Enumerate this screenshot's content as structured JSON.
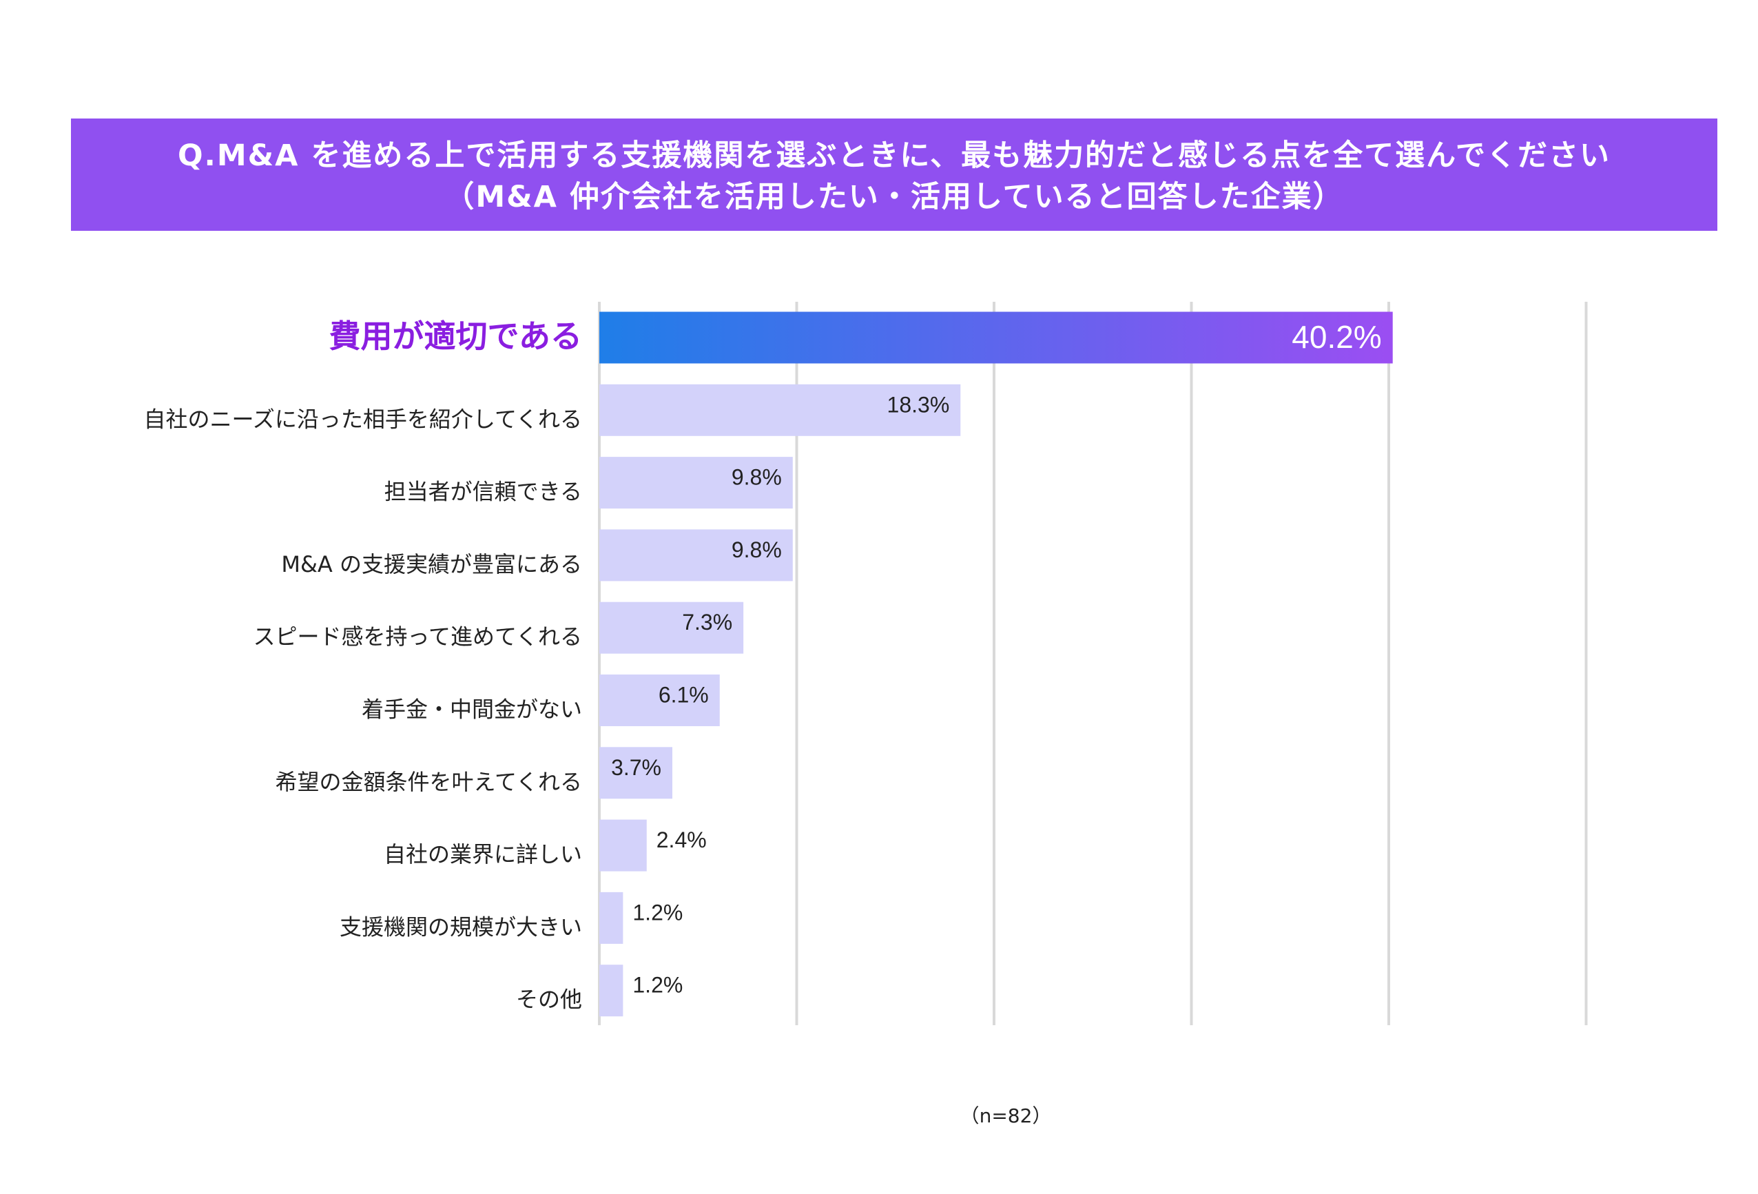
{
  "title": {
    "line1": "Q.M&A を進める上で活用する支援機関を選ぶときに、最も魅力的だと感じる点を全て選んでください",
    "line2": "（M&A 仲介会社を活用したい・活用していると回答した企業）"
  },
  "note": "（n=82）",
  "colors": {
    "title_band": "#9050f0",
    "highlight_label": "#8a1ee0",
    "bar_default": "#d3d2fa",
    "bar_highlight_start": "#1f7ee8",
    "bar_highlight_end": "#9b4ef2",
    "grid": "#d9d9d9"
  },
  "chart_data": {
    "type": "bar",
    "orientation": "horizontal",
    "categories": [
      "費用が適切である",
      "自社のニーズに沿った相手を紹介してくれる",
      "担当者が信頼できる",
      "M&A の支援実績が豊富にある",
      "スピード感を持って進めてくれる",
      "着手金・中間金がない",
      "希望の金額条件を叶えてくれる",
      "自社の業界に詳しい",
      "支援機関の規模が大きい",
      "その他"
    ],
    "values": [
      40.2,
      18.3,
      9.8,
      9.8,
      7.3,
      6.1,
      3.7,
      2.4,
      1.2,
      1.2
    ],
    "value_labels": [
      "40.2%",
      "18.3%",
      "9.8%",
      "9.8%",
      "7.3%",
      "6.1%",
      "3.7%",
      "2.4%",
      "1.2%",
      "1.2%"
    ],
    "highlight_index": 0,
    "xlim": [
      0,
      50
    ],
    "grid": true,
    "grid_step": 10
  }
}
